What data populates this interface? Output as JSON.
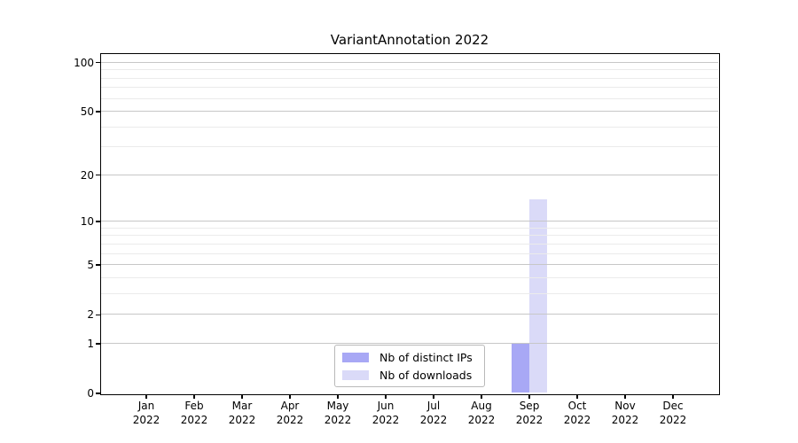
{
  "title": "VariantAnnotation 2022",
  "legend": {
    "position": "lower center",
    "items": [
      {
        "label": "Nb of distinct IPs",
        "color": "#a8a8f5"
      },
      {
        "label": "Nb of downloads",
        "color": "#dadaf8"
      }
    ]
  },
  "axes": {
    "y_tick_labels": [
      "0",
      "1",
      "2",
      "5",
      "10",
      "20",
      "50",
      "100"
    ],
    "x_tick_labels": [
      "Jan 2022",
      "Feb 2022",
      "Mar 2022",
      "Apr 2022",
      "May 2022",
      "Jun 2022",
      "Jul 2022",
      "Aug 2022",
      "Sep 2022",
      "Oct 2022",
      "Nov 2022",
      "Dec 2022"
    ]
  },
  "chart_data": {
    "type": "bar",
    "title": "VariantAnnotation 2022",
    "categories": [
      "Jan 2022",
      "Feb 2022",
      "Mar 2022",
      "Apr 2022",
      "May 2022",
      "Jun 2022",
      "Jul 2022",
      "Aug 2022",
      "Sep 2022",
      "Oct 2022",
      "Nov 2022",
      "Dec 2022"
    ],
    "series": [
      {
        "name": "Nb of distinct IPs",
        "color": "#a8a8f5",
        "values": [
          0,
          0,
          0,
          0,
          0,
          0,
          0,
          0,
          1,
          0,
          0,
          0
        ]
      },
      {
        "name": "Nb of downloads",
        "color": "#dadaf8",
        "values": [
          0,
          0,
          0,
          0,
          0,
          0,
          0,
          0,
          14,
          0,
          0,
          0
        ]
      }
    ],
    "xlabel": "",
    "ylabel": "",
    "yscale": "log10(1+y)",
    "ylim": [
      0,
      113
    ],
    "yticks": [
      0,
      1,
      2,
      5,
      10,
      20,
      50,
      100
    ],
    "yticks_minor": [
      3,
      4,
      6,
      7,
      8,
      9,
      30,
      40,
      60,
      70,
      80,
      90
    ],
    "grid": "horizontal",
    "legend_position": "lower center",
    "colors": {
      "grid_major": "#c7c7c7",
      "grid_minor": "#ebebeb",
      "axis": "#000000",
      "background": "#ffffff"
    }
  }
}
